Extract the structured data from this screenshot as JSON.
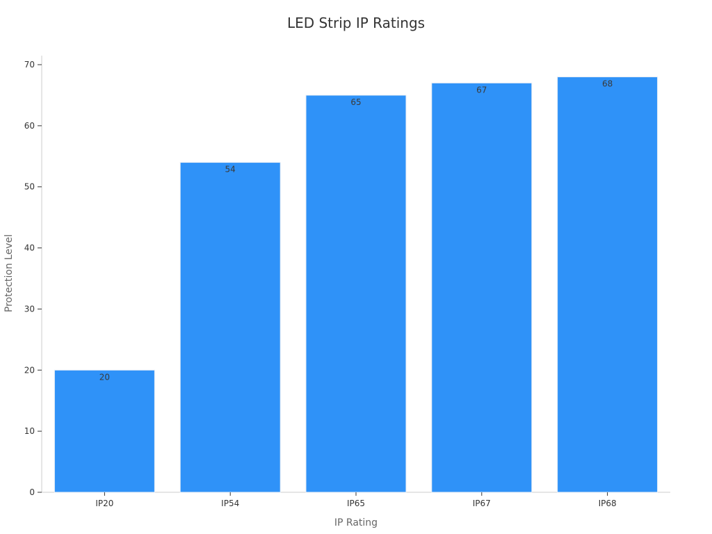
{
  "chart_data": {
    "type": "bar",
    "title": "LED Strip IP Ratings",
    "xlabel": "IP Rating",
    "ylabel": "Protection Level",
    "categories": [
      "IP20",
      "IP54",
      "IP65",
      "IP67",
      "IP68"
    ],
    "values": [
      20,
      54,
      65,
      67,
      68
    ],
    "ylim": [
      0,
      70
    ],
    "yticks": [
      0,
      10,
      20,
      30,
      40,
      50,
      60,
      70
    ],
    "grid": false,
    "legend": "none",
    "bar_color": "#2f92f8"
  }
}
